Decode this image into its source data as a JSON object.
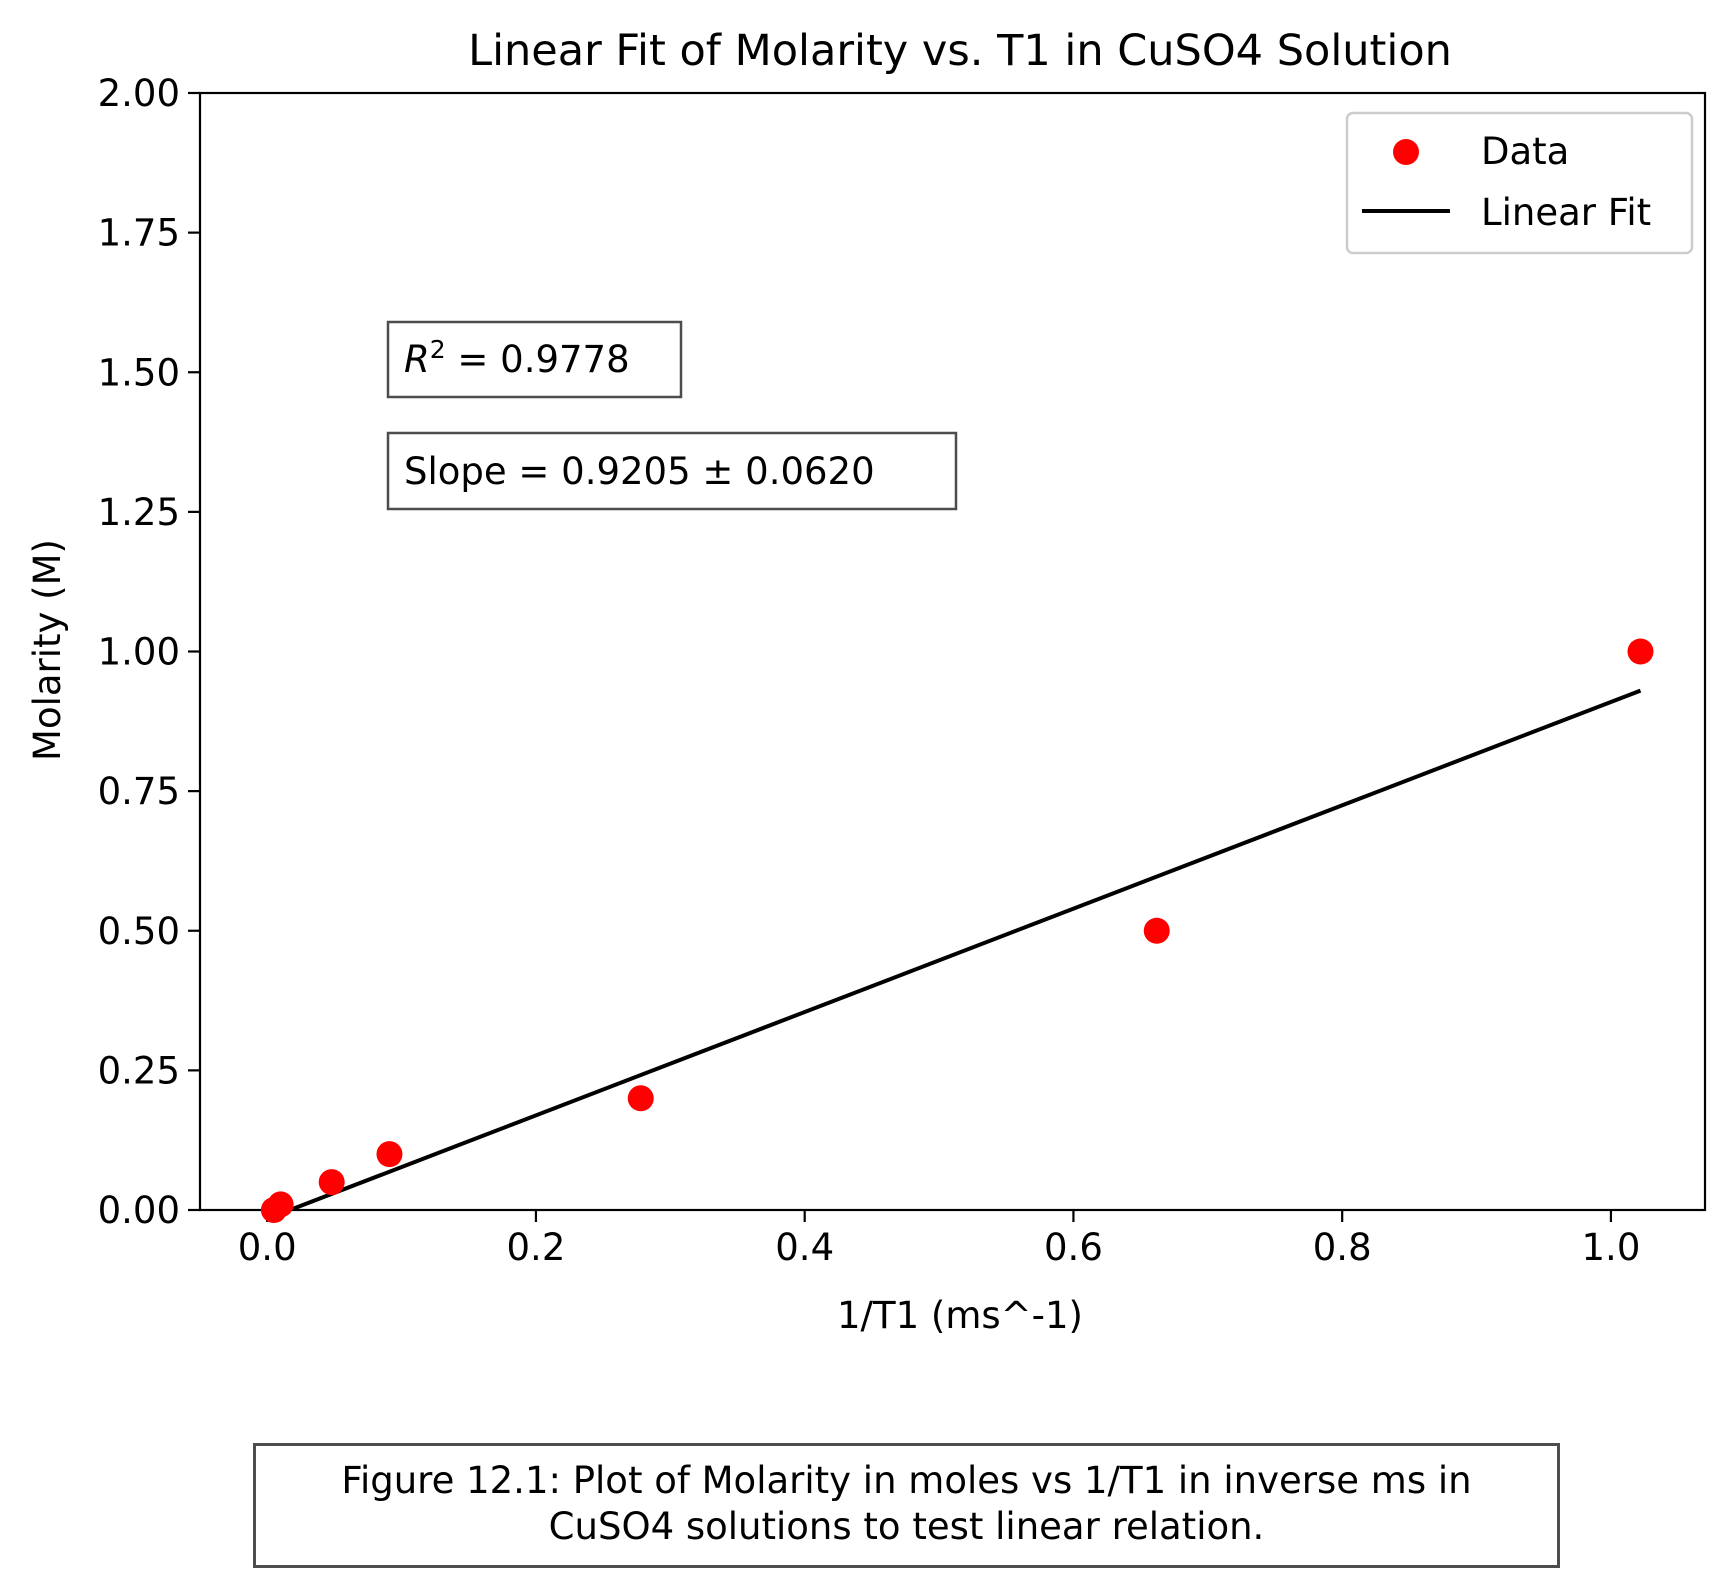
{
  "chart_data": {
    "type": "scatter",
    "title": "Linear Fit of Molarity vs. T1 in CuSO4 Solution",
    "xlabel": "1/T1 (ms^-1)",
    "ylabel": "Molarity (M)",
    "xlim": [
      -0.05,
      1.07
    ],
    "ylim": [
      0,
      2
    ],
    "x_ticks": [
      "0.0",
      "0.2",
      "0.4",
      "0.6",
      "0.8",
      "1.0"
    ],
    "x_tick_values": [
      0.0,
      0.2,
      0.4,
      0.6,
      0.8,
      1.0
    ],
    "y_ticks": [
      "0.00",
      "0.25",
      "0.50",
      "0.75",
      "1.00",
      "1.25",
      "1.50",
      "1.75",
      "2.00"
    ],
    "y_tick_values": [
      0.0,
      0.25,
      0.5,
      0.75,
      1.0,
      1.25,
      1.5,
      1.75,
      2.0
    ],
    "grid": false,
    "legend_position": "top-right",
    "series": [
      {
        "name": "Data",
        "kind": "scatter",
        "color": "#ff0000",
        "points": [
          {
            "x": 0.005,
            "y": 0.0
          },
          {
            "x": 0.01,
            "y": 0.01
          },
          {
            "x": 0.048,
            "y": 0.05
          },
          {
            "x": 0.091,
            "y": 0.1
          },
          {
            "x": 0.278,
            "y": 0.2
          },
          {
            "x": 0.662,
            "y": 0.5
          },
          {
            "x": 1.022,
            "y": 1.0
          }
        ]
      },
      {
        "name": "Linear Fit",
        "kind": "line",
        "color": "#000000",
        "points": [
          {
            "x": 0.005,
            "y": -0.011
          },
          {
            "x": 1.022,
            "y": 0.93
          }
        ]
      }
    ],
    "annotations": {
      "r2_symbol": "R",
      "r2_exponent": "2",
      "r2_value": " = 0.9778",
      "slope": "Slope = 0.9205 ± 0.0620"
    }
  },
  "caption": {
    "line1": "Figure 12.1: Plot of Molarity in moles vs 1/T1 in inverse ms in",
    "line2": "CuSO4 solutions to test linear relation."
  }
}
